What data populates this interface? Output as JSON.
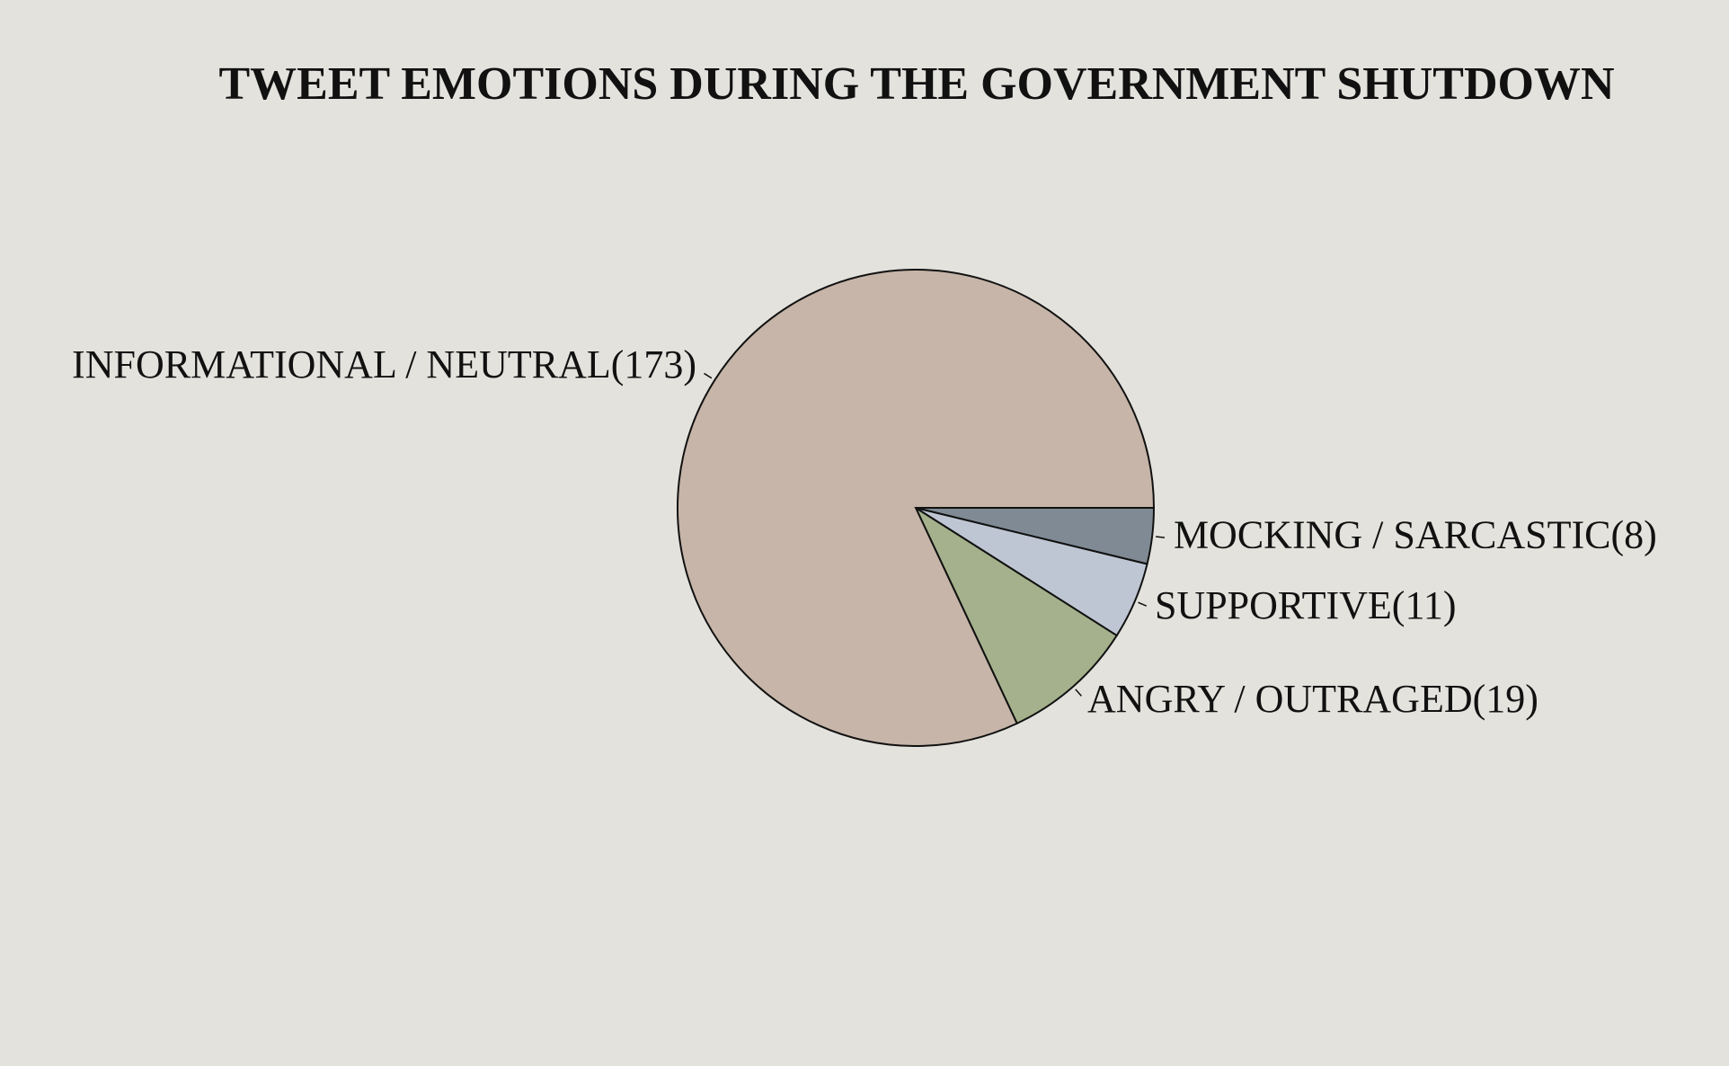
{
  "chart_data": {
    "type": "pie",
    "title": "TWEET EMOTIONS DURING THE GOVERNMENT SHUTDOWN",
    "slices": [
      {
        "label": "MOCKING / SARCASTIC",
        "value": 8,
        "display": "MOCKING / SARCASTIC(8)",
        "color": "#7f8a94"
      },
      {
        "label": "SUPPORTIVE",
        "value": 11,
        "display": "SUPPORTIVE(11)",
        "color": "#bfc6d3"
      },
      {
        "label": "ANGRY / OUTRAGED",
        "value": 19,
        "display": "ANGRY / OUTRAGED(19)",
        "color": "#a4b18c"
      },
      {
        "label": "INFORMATIONAL / NEUTRAL",
        "value": 173,
        "display": "INFORMATIONAL / NEUTRAL(173)",
        "color": "#c6b5a8"
      }
    ],
    "start_angle": "3 o'clock",
    "direction": "clockwise",
    "legend": "none",
    "labels": "outside with leader ticks"
  }
}
